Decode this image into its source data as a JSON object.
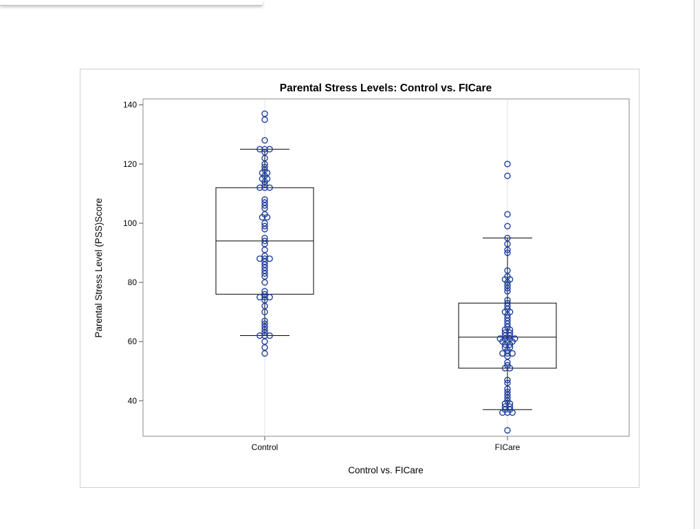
{
  "chart_data": {
    "type": "box",
    "title": "Parental Stress Levels: Control vs. FICare",
    "xlabel": "Control vs. FICare",
    "ylabel": "Parental Stress Level (PSS)Score",
    "categories": [
      "Control",
      "FICare"
    ],
    "ylim": [
      28,
      142
    ],
    "yticks": [
      40,
      60,
      80,
      100,
      120,
      140
    ],
    "grid": "vertical at categories",
    "marker_color": "#1f3f9a",
    "groups": [
      {
        "name": "Control",
        "q1": 76,
        "median": 94,
        "q3": 112,
        "whisker_low": 62,
        "whisker_high": 125,
        "points": [
          56,
          58,
          60,
          62,
          62,
          62,
          63,
          64,
          65,
          66,
          67,
          70,
          72,
          74,
          75,
          75,
          75,
          76,
          77,
          80,
          82,
          83,
          84,
          85,
          86,
          87,
          88,
          88,
          88,
          89,
          91,
          93,
          94,
          95,
          98,
          99,
          100,
          102,
          102,
          103,
          105,
          106,
          107,
          108,
          112,
          112,
          112,
          113,
          114,
          115,
          115,
          116,
          117,
          117,
          118,
          119,
          120,
          122,
          124,
          125,
          125,
          125,
          128,
          135,
          137
        ]
      },
      {
        "name": "FICare",
        "q1": 51,
        "median": 61.5,
        "q3": 73,
        "whisker_low": 37,
        "whisker_high": 95,
        "points": [
          30,
          36,
          36,
          36,
          37,
          37,
          38,
          38,
          39,
          39,
          40,
          41,
          42,
          43,
          44,
          46,
          47,
          51,
          51,
          52,
          53,
          55,
          56,
          56,
          56,
          57,
          58,
          58,
          59,
          59,
          60,
          60,
          60,
          61,
          61,
          61,
          61,
          62,
          62,
          63,
          63,
          64,
          64,
          65,
          66,
          67,
          68,
          69,
          70,
          70,
          71,
          72,
          73,
          74,
          77,
          78,
          79,
          80,
          81,
          81,
          82,
          84,
          90,
          91,
          93,
          95,
          99,
          103,
          116,
          120
        ]
      }
    ]
  }
}
